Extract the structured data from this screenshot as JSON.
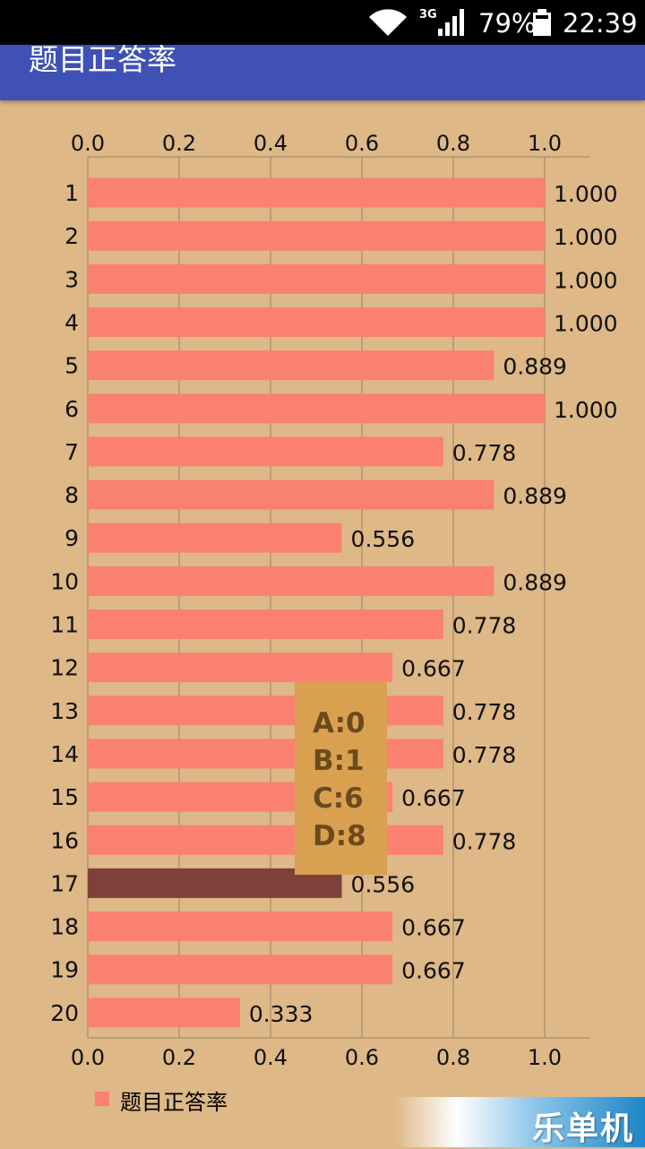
{
  "status_bar": {
    "network": "3G",
    "battery": "79%",
    "time": "22:39"
  },
  "app_bar": {
    "title": "题目正答率"
  },
  "tooltip": {
    "lines": [
      "A:0",
      "B:1",
      "C:6",
      "D:8"
    ]
  },
  "legend": {
    "label": "题目正答率"
  },
  "watermark": {
    "text": "乐单机"
  },
  "colors": {
    "background": "#DEB887",
    "app_bar": "#3F51B5",
    "bar": "#FA8072",
    "bar_highlight": "#80403A",
    "tooltip_bg": "#D9A050",
    "tooltip_text": "#6B4A1C"
  },
  "chart_data": {
    "type": "bar",
    "orientation": "horizontal",
    "categories": [
      "1",
      "2",
      "3",
      "4",
      "5",
      "6",
      "7",
      "8",
      "9",
      "10",
      "11",
      "12",
      "13",
      "14",
      "15",
      "16",
      "17",
      "18",
      "19",
      "20"
    ],
    "series": [
      {
        "name": "题目正答率",
        "values": [
          1.0,
          1.0,
          1.0,
          1.0,
          0.889,
          1.0,
          0.778,
          0.889,
          0.556,
          0.889,
          0.778,
          0.667,
          0.778,
          0.778,
          0.667,
          0.778,
          0.556,
          0.667,
          0.667,
          0.333
        ],
        "value_labels": [
          "1.000",
          "1.000",
          "1.000",
          "1.000",
          "0.889",
          "1.000",
          "0.778",
          "0.889",
          "0.556",
          "0.889",
          "0.778",
          "0.667",
          "0.778",
          "0.778",
          "0.667",
          "0.778",
          "0.556",
          "0.667",
          "0.667",
          "0.333"
        ]
      }
    ],
    "highlighted_index": 16,
    "xlim": [
      0,
      1.1
    ],
    "ticks": [
      "0.0",
      "0.2",
      "0.4",
      "0.6",
      "0.8",
      "1.0"
    ],
    "tick_values": [
      0,
      0.2,
      0.4,
      0.6,
      0.8,
      1.0
    ],
    "grid": true,
    "legend_position": "bottom-left"
  }
}
